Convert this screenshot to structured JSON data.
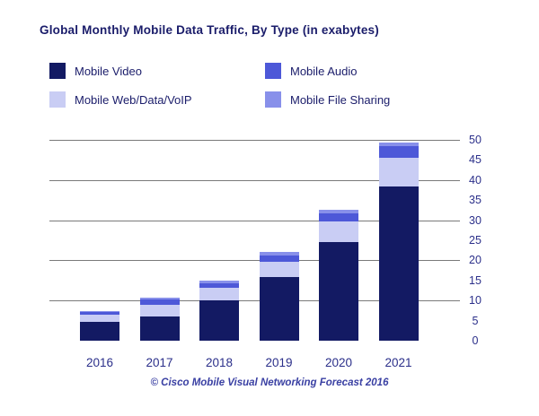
{
  "title": "Global Monthly Mobile Data Traffic, By Type (in exabytes)",
  "footer": "© Cisco Mobile Visual Networking Forecast 2016",
  "legend": [
    {
      "label": "Mobile Video",
      "color": "#131a63",
      "slug": "mobile-video"
    },
    {
      "label": "Mobile Audio",
      "color": "#4d58d8",
      "slug": "mobile-audio"
    },
    {
      "label": "Mobile Web/Data/VoIP",
      "color": "#c9cdf4",
      "slug": "mobile-web-data-voip"
    },
    {
      "label": "Mobile File Sharing",
      "color": "#8890ea",
      "slug": "mobile-file-sharing"
    }
  ],
  "chart_data": {
    "type": "bar",
    "stacked": true,
    "title": "Global Monthly Mobile Data Traffic, By Type (in exabytes)",
    "categories": [
      "2016",
      "2017",
      "2018",
      "2019",
      "2020",
      "2021"
    ],
    "series": [
      {
        "name": "Mobile Video",
        "color": "#131a63",
        "values": [
          4.6,
          6.0,
          10.0,
          15.8,
          24.6,
          38.5
        ]
      },
      {
        "name": "Mobile Web/Data/VoIP",
        "color": "#c9cdf4",
        "values": [
          1.8,
          2.9,
          3.1,
          3.9,
          5.1,
          7.0
        ]
      },
      {
        "name": "Mobile Audio",
        "color": "#4d58d8",
        "values": [
          0.7,
          1.4,
          1.3,
          1.5,
          2.0,
          3.0
        ]
      },
      {
        "name": "Mobile File Sharing",
        "color": "#8890ea",
        "values": [
          0.3,
          0.4,
          0.6,
          0.9,
          0.8,
          0.8
        ]
      }
    ],
    "totals": [
      7.4,
      10.7,
      15.0,
      22.1,
      32.5,
      49.3
    ],
    "xlabel": "",
    "ylabel": "",
    "ylim": [
      0,
      50
    ],
    "y_ticks": [
      0,
      5,
      10,
      15,
      20,
      25,
      30,
      35,
      40,
      45,
      50
    ],
    "gridline_values": [
      10,
      20,
      30,
      40,
      50
    ],
    "grid": "horizontal-major-only",
    "legend_position": "top",
    "source": "© Cisco Mobile Visual Networking Forecast 2016"
  }
}
